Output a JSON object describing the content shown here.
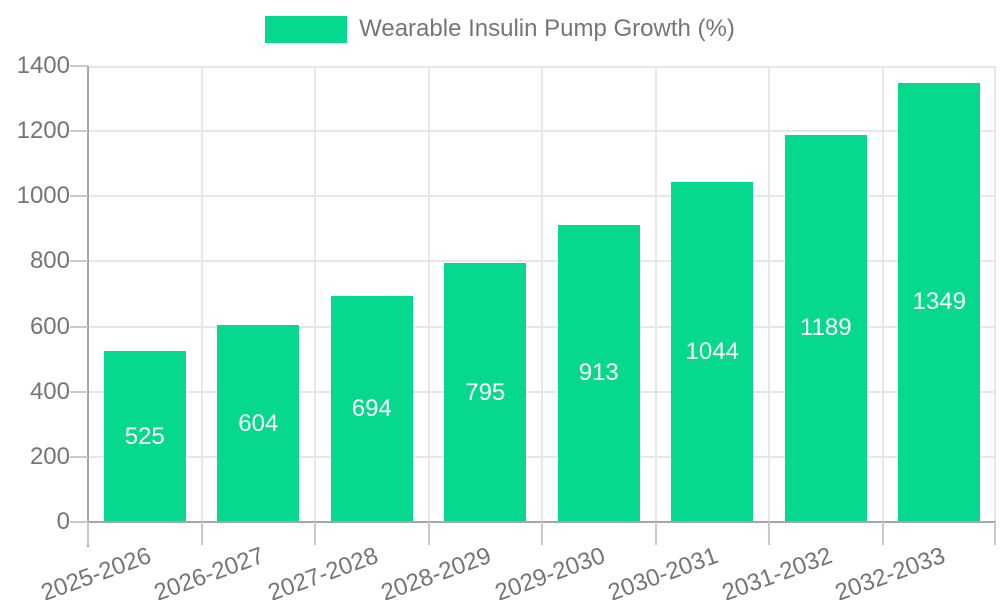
{
  "legend": {
    "label": "Wearable Insulin Pump Growth (%)"
  },
  "colors": {
    "bar": "#06d98e",
    "grid": "#e7e7e7",
    "axis_line": "#a6a6a6",
    "tick": "#c9c9c9",
    "axis_text": "#757575",
    "value_label": "#ffffff",
    "background": "#ffffff"
  },
  "chart_data": {
    "type": "bar",
    "title": "Wearable Insulin Pump Growth (%)",
    "categories": [
      "2025-2026",
      "2026-2027",
      "2027-2028",
      "2028-2029",
      "2029-2030",
      "2030-2031",
      "2031-2032",
      "2032-2033"
    ],
    "values": [
      525,
      604,
      694,
      795,
      913,
      1044,
      1189,
      1349
    ],
    "xlabel": "",
    "ylabel": "",
    "ylim": [
      0,
      1400
    ],
    "yticks": [
      0,
      200,
      400,
      600,
      800,
      1000,
      1200,
      1400
    ],
    "grid": true,
    "legend_position": "top",
    "value_labels": "inside-center",
    "x_label_rotation_deg": -20
  }
}
